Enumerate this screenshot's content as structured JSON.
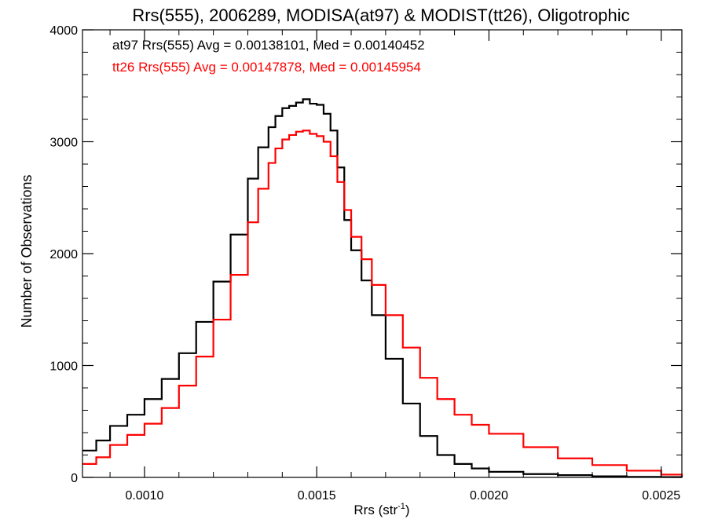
{
  "chart_data": {
    "type": "line",
    "title": "Rrs(555), 2006289, MODISA(at97) & MODIST(tt26), Oligotrophic",
    "xlabel": "Rrs (str",
    "xlabel_sup": "-1",
    "xlabel_close": ")",
    "ylabel": "Number of Observations",
    "xlim": [
      0.00082,
      0.00256
    ],
    "ylim": [
      0,
      4000
    ],
    "xticks": [
      0.001,
      0.0015,
      0.002,
      0.0025
    ],
    "xtick_labels": [
      "0.0010",
      "0.0015",
      "0.0020",
      "0.0025"
    ],
    "yticks": [
      0,
      1000,
      2000,
      3000,
      4000
    ],
    "ytick_labels": [
      "0",
      "1000",
      "2000",
      "3000",
      "4000"
    ],
    "grid": false,
    "style": "step",
    "annotations": [
      {
        "text": "at97 Rrs(555) Avg = 0.00138101, Med = 0.00140452",
        "color": "#000000"
      },
      {
        "text": "tt26 Rrs(555) Avg = 0.00147878, Med = 0.00145954",
        "color": "#ff0000"
      }
    ],
    "series": [
      {
        "color": "#000000",
        "x": [
          0.00082,
          0.00086,
          0.0009,
          0.00095,
          0.001,
          0.00105,
          0.0011,
          0.00115,
          0.0012,
          0.00125,
          0.0013,
          0.00133,
          0.00136,
          0.00138,
          0.0014,
          0.00142,
          0.00144,
          0.00146,
          0.00148,
          0.0015,
          0.00152,
          0.00154,
          0.00156,
          0.00158,
          0.0016,
          0.00163,
          0.00166,
          0.0017,
          0.00175,
          0.0018,
          0.00185,
          0.0019,
          0.00195,
          0.002,
          0.0021,
          0.0022,
          0.0023,
          0.0024,
          0.0025,
          0.00256
        ],
        "y": [
          240,
          330,
          460,
          560,
          700,
          880,
          1110,
          1390,
          1750,
          2170,
          2670,
          2950,
          3130,
          3230,
          3300,
          3320,
          3350,
          3380,
          3340,
          3330,
          3250,
          3100,
          2770,
          2300,
          2030,
          1760,
          1450,
          1060,
          660,
          370,
          200,
          120,
          80,
          50,
          30,
          20,
          10,
          5,
          3,
          2
        ]
      },
      {
        "color": "#ff0000",
        "x": [
          0.00082,
          0.00086,
          0.0009,
          0.00095,
          0.001,
          0.00105,
          0.0011,
          0.00115,
          0.0012,
          0.00125,
          0.0013,
          0.00133,
          0.00136,
          0.00138,
          0.0014,
          0.00142,
          0.00144,
          0.00146,
          0.00148,
          0.0015,
          0.00152,
          0.00154,
          0.00156,
          0.00158,
          0.0016,
          0.00163,
          0.00166,
          0.0017,
          0.00175,
          0.0018,
          0.00185,
          0.0019,
          0.00195,
          0.002,
          0.0021,
          0.0022,
          0.0023,
          0.0024,
          0.0025,
          0.00256
        ],
        "y": [
          120,
          180,
          290,
          380,
          480,
          620,
          820,
          1080,
          1410,
          1810,
          2280,
          2580,
          2810,
          2940,
          3020,
          3060,
          3090,
          3100,
          3070,
          3050,
          3000,
          2870,
          2640,
          2390,
          2150,
          1950,
          1720,
          1450,
          1160,
          890,
          700,
          560,
          470,
          390,
          270,
          170,
          110,
          60,
          25,
          10
        ]
      }
    ]
  }
}
